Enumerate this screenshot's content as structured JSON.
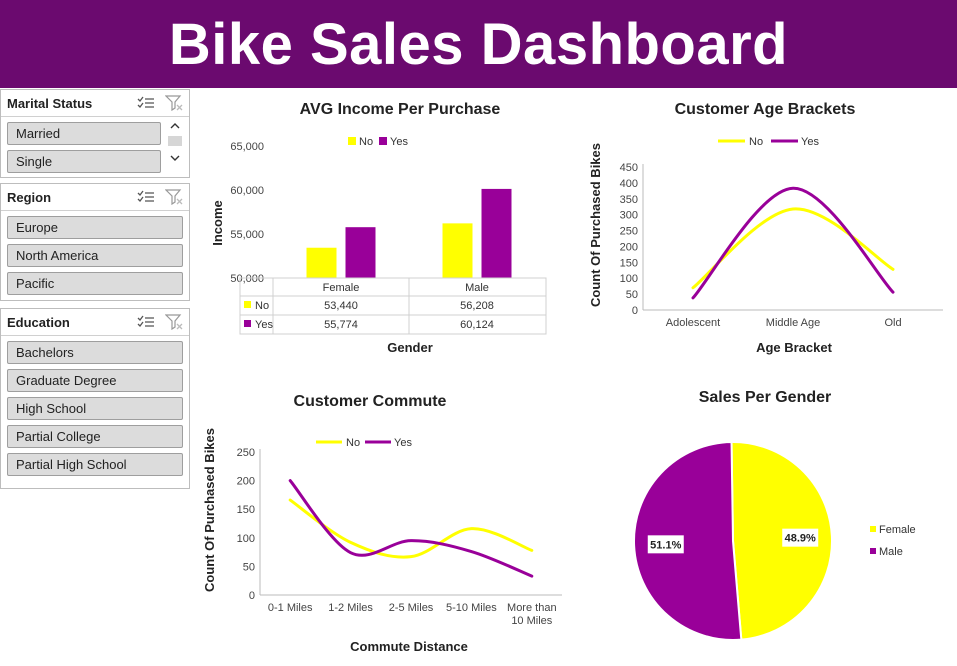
{
  "header": {
    "title": "Bike Sales Dashboard"
  },
  "slicers": [
    {
      "title": "Marital Status",
      "items": [
        "Married",
        "Single"
      ]
    },
    {
      "title": "Region",
      "items": [
        "Europe",
        "North America",
        "Pacific"
      ]
    },
    {
      "title": "Education",
      "items": [
        "Bachelors",
        "Graduate Degree",
        "High School",
        "Partial College",
        "Partial High School"
      ]
    }
  ],
  "colors": {
    "banner": "#6b0a6f",
    "yes": "#990099",
    "no": "#ffff00"
  },
  "chart_data": [
    {
      "type": "bar",
      "title": "AVG Income Per Purchase",
      "xlabel": "Gender",
      "ylabel": "Income",
      "categories": [
        "Female",
        "Male"
      ],
      "series": [
        {
          "name": "No",
          "values": [
            53440,
            56208
          ],
          "labels": [
            "53,440",
            "56,208"
          ]
        },
        {
          "name": "Yes",
          "values": [
            55774,
            60124
          ],
          "labels": [
            "55,774",
            "60,124"
          ]
        }
      ],
      "ylim": [
        50000,
        65000
      ],
      "yticks": [
        "50,000",
        "55,000",
        "60,000",
        "65,000"
      ],
      "legend": "top",
      "data_table": true
    },
    {
      "type": "line",
      "title": "Customer Age Brackets",
      "xlabel": "Age Bracket",
      "ylabel": "Count Of Purchased Bikes",
      "categories": [
        "Adolescent",
        "Middle Age",
        "Old"
      ],
      "series": [
        {
          "name": "No",
          "values": [
            70,
            318,
            128
          ]
        },
        {
          "name": "Yes",
          "values": [
            38,
            383,
            56
          ]
        }
      ],
      "ylim": [
        0,
        450
      ],
      "yticks": [
        "0",
        "50",
        "100",
        "150",
        "200",
        "250",
        "300",
        "350",
        "400",
        "450"
      ],
      "legend": "top"
    },
    {
      "type": "line",
      "title": "Customer Commute",
      "xlabel": "Commute Distance",
      "ylabel": "Count Of Purchased Bikes",
      "categories": [
        "0-1 Miles",
        "1-2 Miles",
        "2-5 Miles",
        "5-10 Miles",
        "More than 10 Miles"
      ],
      "category_lines": [
        [
          "0-1 Miles"
        ],
        [
          "1-2 Miles"
        ],
        [
          "2-5 Miles"
        ],
        [
          "5-10 Miles"
        ],
        [
          "More than",
          "10 Miles"
        ]
      ],
      "series": [
        {
          "name": "No",
          "values": [
            166,
            92,
            67,
            116,
            78
          ]
        },
        {
          "name": "Yes",
          "values": [
            200,
            74,
            95,
            76,
            33
          ]
        }
      ],
      "ylim": [
        0,
        250
      ],
      "yticks": [
        "0",
        "50",
        "100",
        "150",
        "200",
        "250"
      ],
      "legend": "top"
    },
    {
      "type": "pie",
      "title": "Sales Per Gender",
      "categories": [
        "Female",
        "Male"
      ],
      "values": [
        48.9,
        51.1
      ],
      "labels": [
        "48.9%",
        "51.1%"
      ],
      "legend": "right"
    }
  ]
}
